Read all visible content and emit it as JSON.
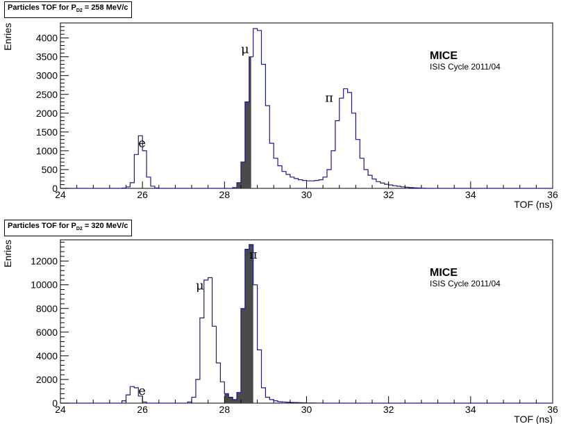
{
  "chart_data": [
    {
      "type": "histogram",
      "title_prefix": "Particles TOF for P",
      "title_sub": "D2",
      "title_suffix": " = 258 MeV/c",
      "xlabel": "TOF (ns)",
      "ylabel": "Enries",
      "xlim": [
        24,
        36
      ],
      "ylim": [
        0,
        4400
      ],
      "xticks": [
        "24",
        "26",
        "28",
        "30",
        "32",
        "34",
        "36"
      ],
      "yticks": [
        "0",
        "500",
        "1000",
        "1500",
        "2000",
        "2500",
        "3000",
        "3500",
        "4000"
      ],
      "annotation_main": "MICE",
      "annotation_sub": "ISIS Cycle 2011/04",
      "peak_labels": [
        {
          "text": "e",
          "x": 25.9,
          "y": 1100
        },
        {
          "text": "μ",
          "x": 28.4,
          "y": 3600
        },
        {
          "text": "π",
          "x": 30.45,
          "y": 2300
        }
      ],
      "selection_window": [
        28.0,
        28.65
      ],
      "bin_width": 0.1,
      "bin_start": 24.0,
      "values": [
        0,
        0,
        0,
        0,
        0,
        0,
        0,
        0,
        0,
        0,
        0,
        0,
        0,
        0,
        0,
        10,
        40,
        150,
        900,
        1400,
        1000,
        300,
        60,
        10,
        0,
        0,
        0,
        0,
        0,
        0,
        0,
        0,
        0,
        0,
        0,
        0,
        0,
        0,
        0,
        0,
        0,
        0,
        20,
        150,
        700,
        2300,
        3500,
        4250,
        4200,
        3300,
        2200,
        1200,
        800,
        600,
        450,
        370,
        300,
        260,
        230,
        210,
        200,
        200,
        210,
        230,
        300,
        500,
        1000,
        1800,
        2400,
        2650,
        2550,
        2000,
        1300,
        800,
        500,
        350,
        250,
        180,
        140,
        110,
        90,
        70,
        55,
        40,
        30,
        20,
        15,
        10,
        5,
        0,
        0,
        0,
        0,
        0,
        0,
        0,
        0,
        0,
        0,
        0,
        0,
        0,
        0,
        0,
        0,
        0,
        0,
        0,
        0,
        0,
        0,
        0,
        0,
        0,
        0,
        0,
        0,
        0,
        0,
        0,
        0,
        0,
        0
      ]
    },
    {
      "type": "histogram",
      "title_prefix": "Particles TOF for P",
      "title_sub": "D2",
      "title_suffix": " = 320 MeV/c",
      "xlabel": "TOF (ns)",
      "ylabel": "Enries",
      "xlim": [
        24,
        36
      ],
      "ylim": [
        0,
        13800
      ],
      "xticks": [
        "24",
        "26",
        "28",
        "30",
        "32",
        "34",
        "36"
      ],
      "yticks": [
        "0",
        "2000",
        "4000",
        "6000",
        "8000",
        "10000",
        "12000"
      ],
      "annotation_main": "MICE",
      "annotation_sub": "ISIS Cycle 2011/04",
      "peak_labels": [
        {
          "text": "e",
          "x": 25.9,
          "y": 700
        },
        {
          "text": "μ",
          "x": 27.3,
          "y": 9600
        },
        {
          "text": "π",
          "x": 28.6,
          "y": 12200
        }
      ],
      "selection_window": [
        28.0,
        28.7
      ],
      "bin_width": 0.1,
      "bin_start": 24.0,
      "values": [
        0,
        0,
        0,
        0,
        0,
        0,
        0,
        0,
        0,
        0,
        0,
        0,
        0,
        0,
        0,
        200,
        700,
        1400,
        1300,
        600,
        100,
        0,
        0,
        0,
        0,
        0,
        0,
        0,
        0,
        0,
        0,
        100,
        500,
        2000,
        7200,
        10400,
        10600,
        6500,
        3400,
        1800,
        800,
        500,
        300,
        900,
        8000,
        13000,
        13400,
        10000,
        4500,
        1300,
        500,
        300,
        200,
        120,
        100,
        80,
        60,
        50,
        40,
        30,
        20,
        15,
        10,
        5,
        0,
        0,
        0,
        0,
        0,
        0,
        0,
        0,
        0,
        0,
        0,
        0,
        0,
        0,
        0,
        0,
        0,
        0,
        0,
        0,
        0,
        0,
        0,
        0,
        0,
        0,
        0,
        0,
        0,
        0,
        0,
        0,
        0,
        0,
        0,
        0,
        0,
        0,
        0,
        0,
        0,
        0,
        0,
        0,
        0,
        0,
        0,
        0,
        0,
        0,
        0,
        0,
        0,
        0,
        0,
        0
      ]
    }
  ]
}
